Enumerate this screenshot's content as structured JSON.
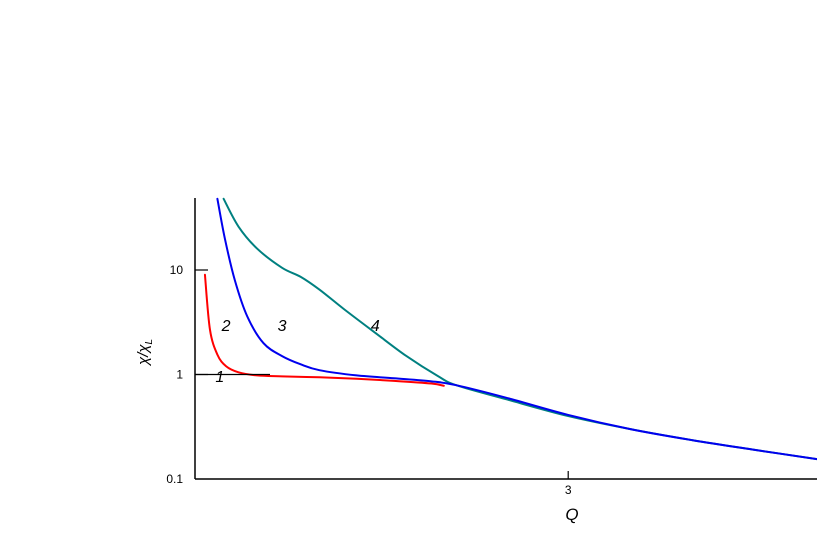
{
  "chart_data": {
    "type": "line",
    "y_scale": "log",
    "xlabel": "Q",
    "ylabel_main": "χ/χ",
    "ylabel_sub": "L",
    "x_ticks": [
      {
        "value": 3,
        "label": "3"
      }
    ],
    "y_ticks": [
      {
        "value": 0.1,
        "label": "0.1"
      },
      {
        "value": 1,
        "label": "1"
      },
      {
        "value": 10,
        "label": "10"
      }
    ],
    "xlim": [
      0,
      5
    ],
    "ylim": [
      0.1,
      50
    ],
    "grid": false,
    "series": [
      {
        "name": "1",
        "color": "#ff0000",
        "x": [
          0.08,
          0.12,
          0.18,
          0.25,
          0.35,
          0.5,
          0.7,
          1.0,
          1.3,
          1.6,
          1.9,
          2.0
        ],
        "y": [
          9.0,
          2.7,
          1.55,
          1.2,
          1.05,
          0.98,
          0.96,
          0.94,
          0.91,
          0.87,
          0.82,
          0.78
        ]
      },
      {
        "name": "2",
        "color": "#0000ee",
        "x": [
          0.18,
          0.24,
          0.32,
          0.42,
          0.55,
          0.7,
          0.85,
          1.0,
          1.3,
          1.6,
          1.9,
          2.1,
          2.5,
          3.0,
          3.5,
          4.0,
          4.5,
          5.0
        ],
        "y": [
          48,
          20,
          8,
          3.6,
          2.0,
          1.5,
          1.25,
          1.1,
          0.98,
          0.92,
          0.86,
          0.79,
          0.6,
          0.41,
          0.3,
          0.235,
          0.19,
          0.155
        ]
      },
      {
        "name": "4",
        "color": "#008080",
        "x": [
          0.23,
          0.35,
          0.5,
          0.7,
          0.85,
          1.0,
          1.2,
          1.45,
          1.7,
          1.95,
          2.1,
          2.5,
          3.0,
          3.5,
          4.0,
          4.5,
          5.0
        ],
        "y": [
          48,
          26,
          16,
          10.5,
          8.6,
          6.5,
          4.2,
          2.5,
          1.5,
          0.97,
          0.79,
          0.58,
          0.4,
          0.3,
          0.235,
          0.19,
          0.155
        ]
      }
    ],
    "annotations": [
      {
        "text": "1",
        "x": 0.2,
        "y": 0.85
      },
      {
        "text": "2",
        "x": 0.25,
        "y": 2.6
      },
      {
        "text": "3",
        "x": 0.7,
        "y": 2.6
      },
      {
        "text": "4",
        "x": 1.45,
        "y": 2.6
      }
    ]
  }
}
